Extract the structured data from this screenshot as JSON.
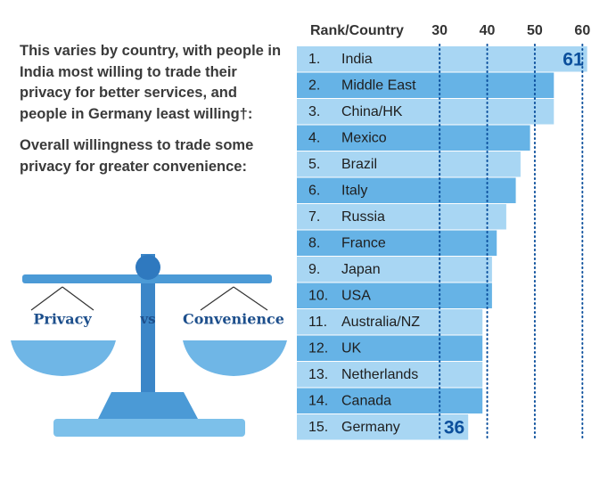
{
  "text": {
    "paragraphs": [
      "This varies by country, with people in India most willing to trade their privacy for better services, and people in Germany least willing†:",
      "Overall willingness to trade some privacy for greater convenience:"
    ]
  },
  "illustration": {
    "left_label": "Privacy",
    "middle_label": "vs",
    "right_label": "Convenience"
  },
  "chart_data": {
    "type": "barh",
    "header": "Rank/Country",
    "ranks": [
      "1.",
      "2.",
      "3.",
      "4.",
      "5.",
      "6.",
      "7.",
      "8.",
      "9.",
      "10.",
      "11.",
      "12.",
      "13.",
      "14.",
      "15."
    ],
    "categories": [
      "India",
      "Middle East",
      "China/HK",
      "Mexico",
      "Brazil",
      "Italy",
      "Russia",
      "France",
      "Japan",
      "USA",
      "Australia/NZ",
      "UK",
      "Netherlands",
      "Canada",
      "Germany"
    ],
    "values": [
      61,
      54,
      54,
      49,
      47,
      46,
      44,
      42,
      41,
      41,
      39,
      39,
      39,
      39,
      36
    ],
    "colors": [
      "#a8d6f3",
      "#66b3e6"
    ],
    "xlim": [
      0,
      62
    ],
    "xticks": [
      30,
      40,
      50,
      60
    ],
    "grid": true,
    "grid_color": "#0b4f9c"
  }
}
